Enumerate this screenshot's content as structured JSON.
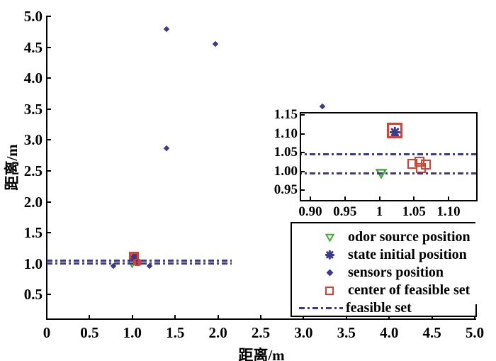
{
  "colors": {
    "blue": "#3c3a8e",
    "red": "#e63c2a",
    "green": "#43ae35",
    "axis": "#000000",
    "background": "#ffffff"
  },
  "chart_data": {
    "type": "scatter",
    "title": "",
    "xlabel": "距离/m",
    "ylabel": "距离/m",
    "xlim": [
      0,
      5.0
    ],
    "ylim": [
      0.1,
      5.0
    ],
    "grid": false,
    "legend_position": "bottom-right",
    "x_ticks": {
      "values": [
        0,
        0.5,
        1.0,
        1.5,
        2.0,
        2.5,
        3.0,
        3.5,
        4.0,
        4.5,
        5.0
      ],
      "labels": [
        "0",
        "0.5",
        "1.0",
        "1.5",
        "2.0",
        "2.5",
        "3.0",
        "3.5",
        "4.0",
        "4.5",
        "5.0"
      ]
    },
    "y_ticks": {
      "values": [
        0.5,
        1.0,
        1.5,
        2.0,
        2.5,
        3.0,
        3.5,
        4.0,
        4.5,
        5.0
      ],
      "labels": [
        "0.5",
        "1.0",
        "1.5",
        "2.0",
        "2.5",
        "3.0",
        "3.5",
        "4.0",
        "4.5",
        "5.0"
      ]
    },
    "series": [
      {
        "name": "odor source position",
        "marker": "triangle-down",
        "color": "green",
        "points": [
          [
            1.0,
            1.0
          ]
        ]
      },
      {
        "name": "state initial position",
        "marker": "asterisk",
        "color": "blue",
        "points": [
          [
            1.02,
            1.108
          ]
        ]
      },
      {
        "name": "sensors position",
        "marker": "diamond",
        "color": "blue",
        "points": [
          [
            0.78,
            0.96
          ],
          [
            1.02,
            1.1
          ],
          [
            1.2,
            0.96
          ],
          [
            1.4,
            2.87
          ],
          [
            1.4,
            4.8
          ],
          [
            1.97,
            4.55
          ],
          [
            3.22,
            3.55
          ]
        ]
      },
      {
        "name": "center of feasible set",
        "marker": "square-open",
        "color": "red",
        "emphasis_index": 0,
        "points": [
          [
            1.02,
            1.112
          ],
          [
            1.046,
            1.024
          ],
          [
            1.056,
            1.03
          ],
          [
            1.058,
            1.012
          ],
          [
            1.065,
            1.022
          ]
        ]
      },
      {
        "name": "feasible set",
        "marker": "dashdot-line",
        "color": "blue",
        "lines": [
          {
            "y": 1.05,
            "x_range": [
              0,
              2.16
            ]
          },
          {
            "y": 0.998,
            "x_range": [
              0,
              2.16
            ]
          }
        ]
      }
    ],
    "inset": {
      "xlim": [
        0.89,
        1.142
      ],
      "ylim": [
        0.92,
        1.158
      ],
      "x_ticks": {
        "values": [
          0.9,
          0.95,
          1.0,
          1.05,
          1.1
        ],
        "labels": [
          "0.90",
          "0.95",
          "1",
          "1.05",
          "1.10"
        ]
      },
      "y_ticks": {
        "values": [
          1.15,
          1.1,
          1.05,
          1.0,
          0.95
        ],
        "labels": [
          "1.15",
          "1.10",
          "1.05",
          "1.00",
          "0.95"
        ]
      }
    }
  }
}
